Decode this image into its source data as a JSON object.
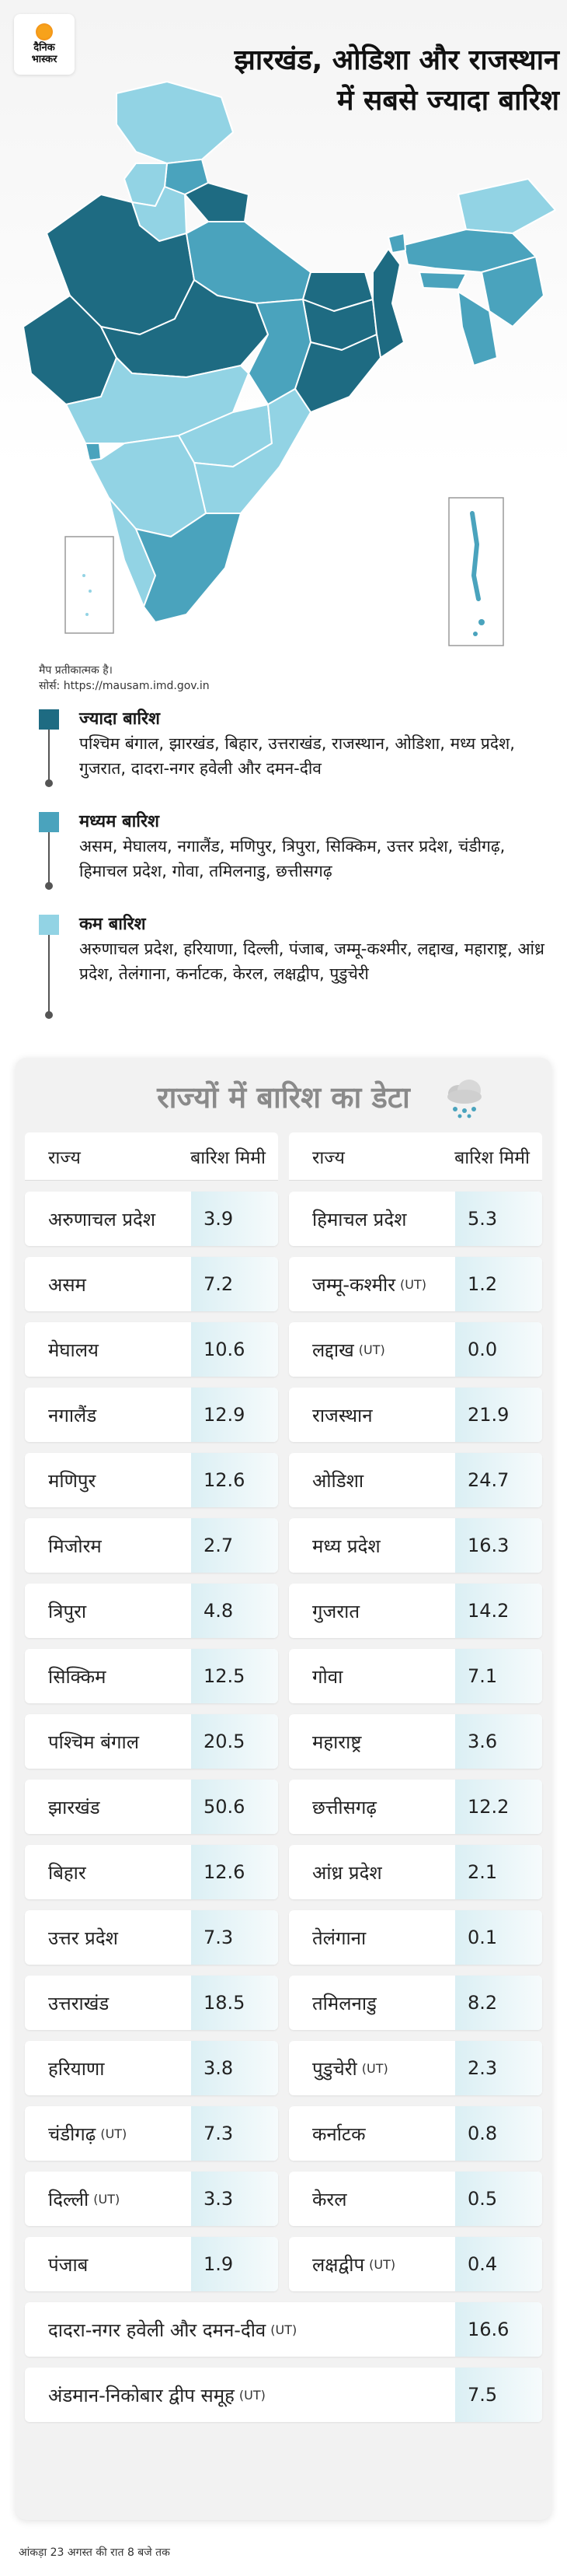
{
  "logo": {
    "line1": "दैनिक",
    "line2": "भास्कर"
  },
  "headline": "झारखंड, ओडिशा और राजस्थान में सबसे ज्यादा बारिश",
  "map_note": {
    "line1": "मैप प्रतीकात्मक है।",
    "line2": "सोर्स: https://mausam.imd.gov.in"
  },
  "colors": {
    "high": "#1e6b82",
    "medium": "#4aa3bd",
    "low": "#92d3e4",
    "map_outline": "#ffffff"
  },
  "legend": [
    {
      "title": "ज्यादा बारिश",
      "desc": "पश्चिम बंगाल, झारखंड, बिहार, उत्तराखंड, राजस्थान, ओडिशा, मध्य प्रदेश, गुजरात, दादरा-नगर हवेली और दमन-दीव",
      "color": "#1e6b82"
    },
    {
      "title": "मध्यम बारिश",
      "desc": "असम, मेघालय, नगालैंड, मणिपुर, त्रिपुरा, सिक्किम, उत्तर प्रदेश, चंडीगढ़, हिमाचल प्रदेश, गोवा, तमिलनाडु, छत्तीसगढ़",
      "color": "#4aa3bd"
    },
    {
      "title": "कम बारिश",
      "desc": "अरुणाचल प्रदेश, हरियाणा, दिल्ली, पंजाब, जम्मू-कश्मीर, लद्दाख, महाराष्ट्र, आंध्र प्रदेश, तेलंगाना, कर्नाटक, केरल, लक्षद्वीप, पुडुचेरी",
      "color": "#92d3e4"
    }
  ],
  "card_title": "राज्यों में बारिश का डेटा",
  "icons": {
    "weather": "rain-cloud-icon"
  },
  "chart_data": {
    "type": "table",
    "columns": [
      "राज्य",
      "बारिश मिमी"
    ],
    "left": [
      {
        "name": "अरुणाचल प्रदेश",
        "ut": "",
        "value": "3.9"
      },
      {
        "name": "असम",
        "ut": "",
        "value": "7.2"
      },
      {
        "name": "मेघालय",
        "ut": "",
        "value": "10.6"
      },
      {
        "name": "नगालैंड",
        "ut": "",
        "value": "12.9"
      },
      {
        "name": "मणिपुर",
        "ut": "",
        "value": "12.6"
      },
      {
        "name": "मिजोरम",
        "ut": "",
        "value": "2.7"
      },
      {
        "name": "त्रिपुरा",
        "ut": "",
        "value": "4.8"
      },
      {
        "name": "सिक्किम",
        "ut": "",
        "value": "12.5"
      },
      {
        "name": "पश्चिम बंगाल",
        "ut": "",
        "value": "20.5"
      },
      {
        "name": "झारखंड",
        "ut": "",
        "value": "50.6"
      },
      {
        "name": "बिहार",
        "ut": "",
        "value": "12.6"
      },
      {
        "name": "उत्तर प्रदेश",
        "ut": "",
        "value": "7.3"
      },
      {
        "name": "उत्तराखंड",
        "ut": "",
        "value": "18.5"
      },
      {
        "name": "हरियाणा",
        "ut": "",
        "value": "3.8"
      },
      {
        "name": "चंडीगढ़",
        "ut": "(UT)",
        "value": "7.3"
      },
      {
        "name": "दिल्ली",
        "ut": "(UT)",
        "value": "3.3"
      },
      {
        "name": "पंजाब",
        "ut": "",
        "value": "1.9"
      }
    ],
    "right": [
      {
        "name": "हिमाचल प्रदेश",
        "ut": "",
        "value": "5.3"
      },
      {
        "name": "जम्मू-कश्मीर",
        "ut": "(UT)",
        "value": "1.2"
      },
      {
        "name": "लद्दाख",
        "ut": "(UT)",
        "value": "0.0"
      },
      {
        "name": "राजस्थान",
        "ut": "",
        "value": "21.9"
      },
      {
        "name": "ओडिशा",
        "ut": "",
        "value": "24.7"
      },
      {
        "name": "मध्य प्रदेश",
        "ut": "",
        "value": "16.3"
      },
      {
        "name": "गुजरात",
        "ut": "",
        "value": "14.2"
      },
      {
        "name": "गोवा",
        "ut": "",
        "value": "7.1"
      },
      {
        "name": "महाराष्ट्र",
        "ut": "",
        "value": "3.6"
      },
      {
        "name": "छत्तीसगढ़",
        "ut": "",
        "value": "12.2"
      },
      {
        "name": "आंध्र प्रदेश",
        "ut": "",
        "value": "2.1"
      },
      {
        "name": "तेलंगाना",
        "ut": "",
        "value": "0.1"
      },
      {
        "name": "तमिलनाडु",
        "ut": "",
        "value": "8.2"
      },
      {
        "name": "पुडुचेरी",
        "ut": "(UT)",
        "value": "2.3"
      },
      {
        "name": "कर्नाटक",
        "ut": "",
        "value": "0.8"
      },
      {
        "name": "केरल",
        "ut": "",
        "value": "0.5"
      },
      {
        "name": "लक्षद्वीप",
        "ut": "(UT)",
        "value": "0.4"
      }
    ],
    "wide": [
      {
        "name": "दादरा-नगर हवेली और दमन-दीव",
        "ut": "(UT)",
        "value": "16.6"
      },
      {
        "name": "अंडमान-निकोबार द्वीप समूह",
        "ut": "(UT)",
        "value": "7.5"
      }
    ]
  },
  "footnote": "आंकड़ा 23 अगस्त की रात 8 बजे तक"
}
